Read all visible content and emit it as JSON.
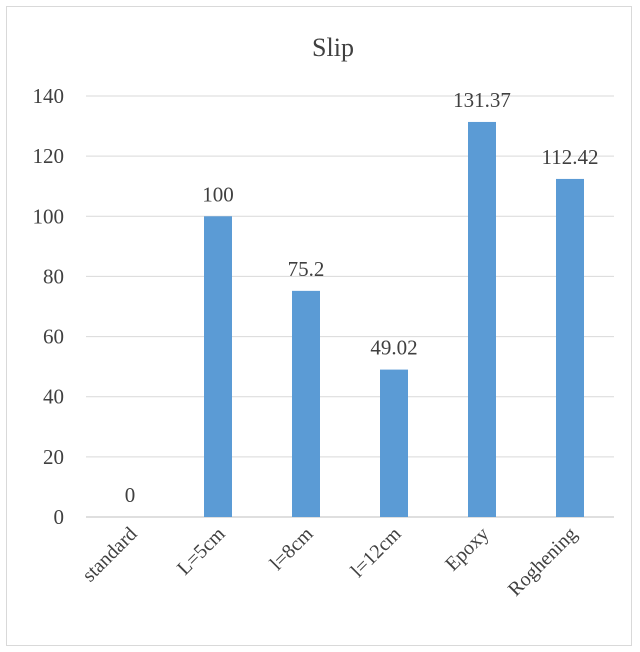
{
  "chart_data": {
    "type": "bar",
    "title": "Slip",
    "categories": [
      "standard",
      "L=5cm",
      "l=8cm",
      "l=12cm",
      "Epoxy",
      "Roghening"
    ],
    "values": [
      0,
      100,
      75.2,
      49.02,
      131.37,
      112.42
    ],
    "value_labels": [
      "0",
      "100",
      "75.2",
      "49.02",
      "131.37",
      "112.42"
    ],
    "yticks": [
      "0",
      "20",
      "40",
      "60",
      "80",
      "100",
      "120",
      "140"
    ],
    "ylim": [
      0,
      140
    ],
    "grid": true,
    "legend": "none",
    "bar_color": "#5b9bd5"
  }
}
